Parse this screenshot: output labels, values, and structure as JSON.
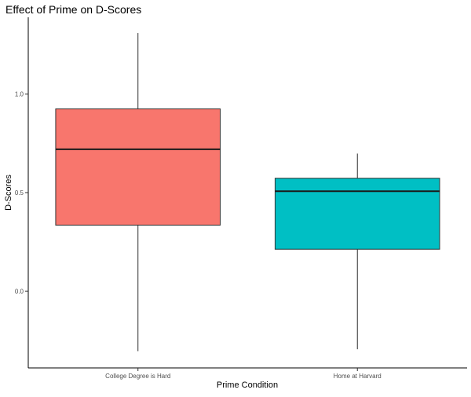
{
  "chart_data": {
    "type": "boxplot",
    "title": "Effect of Prime on D-Scores",
    "xlabel": "Prime Condition",
    "ylabel": "D-Scores",
    "ylim": [
      -0.39,
      1.39
    ],
    "yticks": [
      0.0,
      0.5,
      1.0
    ],
    "ytick_labels": [
      "0.0",
      "0.5",
      "1.0"
    ],
    "grid": false,
    "legend": "none",
    "categories": [
      "College Degree is Hard",
      "Home at Harvard"
    ],
    "boxes": [
      {
        "category": "College Degree is Hard",
        "whisker_low": -0.305,
        "q1": 0.335,
        "median": 0.72,
        "q3": 0.925,
        "whisker_high": 1.31,
        "color": "#F8766D"
      },
      {
        "category": "Home at Harvard",
        "whisker_low": -0.295,
        "q1": 0.212,
        "median": 0.507,
        "q3": 0.573,
        "whisker_high": 0.698,
        "color": "#00BFC4"
      }
    ]
  }
}
